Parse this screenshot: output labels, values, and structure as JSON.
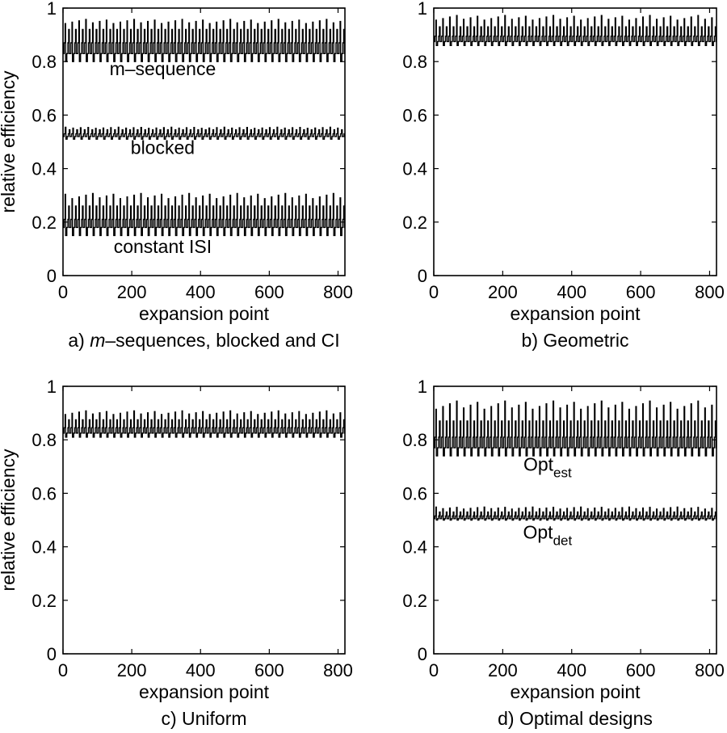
{
  "figure": {
    "background": "#ffffff",
    "line_color": "#000000"
  },
  "chart_data": [
    {
      "id": "a",
      "type": "line",
      "caption_prefix": "a) ",
      "caption_italic": "m",
      "caption_rest": "–sequences, blocked and CI",
      "xlabel": "expansion point",
      "ylabel": "relative efficiency",
      "xlim": [
        0,
        820
      ],
      "ylim": [
        0,
        1
      ],
      "xticks": [
        0,
        200,
        400,
        600,
        800
      ],
      "yticks": [
        0,
        0.2,
        0.4,
        0.6,
        0.8,
        1
      ],
      "grid": false,
      "series": [
        {
          "name": "m–sequence",
          "base": 0.8,
          "low": 0.83,
          "mid": 0.87,
          "high": 0.92,
          "peak": 0.96,
          "period": 20
        },
        {
          "name": "blocked",
          "base": 0.51,
          "low": 0.52,
          "mid": 0.53,
          "high": 0.545,
          "peak": 0.555,
          "period": 22
        },
        {
          "name": "constant ISI",
          "base": 0.15,
          "low": 0.18,
          "mid": 0.21,
          "high": 0.26,
          "peak": 0.31,
          "period": 20
        }
      ],
      "annotations": [
        {
          "text": "m–sequence",
          "x": 290,
          "y": 0.75
        },
        {
          "text": "blocked",
          "x": 290,
          "y": 0.455
        },
        {
          "text": "constant ISI",
          "x": 290,
          "y": 0.085
        }
      ]
    },
    {
      "id": "b",
      "type": "line",
      "caption": "b) Geometric",
      "xlabel": "expansion point",
      "ylabel": "",
      "xlim": [
        0,
        820
      ],
      "ylim": [
        0,
        1
      ],
      "xticks": [
        0,
        200,
        400,
        600,
        800
      ],
      "yticks": [
        0,
        0.2,
        0.4,
        0.6,
        0.8,
        1
      ],
      "grid": false,
      "series": [
        {
          "base": 0.86,
          "low": 0.875,
          "mid": 0.895,
          "high": 0.93,
          "peak": 0.975,
          "period": 20
        }
      ],
      "annotations": []
    },
    {
      "id": "c",
      "type": "line",
      "caption": "c) Uniform",
      "xlabel": "expansion point",
      "ylabel": "relative efficiency",
      "xlim": [
        0,
        820
      ],
      "ylim": [
        0,
        1
      ],
      "xticks": [
        0,
        200,
        400,
        600,
        800
      ],
      "yticks": [
        0,
        0.2,
        0.4,
        0.6,
        0.8,
        1
      ],
      "grid": false,
      "series": [
        {
          "base": 0.81,
          "low": 0.825,
          "mid": 0.845,
          "high": 0.875,
          "peak": 0.91,
          "period": 20
        }
      ],
      "annotations": []
    },
    {
      "id": "d",
      "type": "line",
      "caption": "d) Optimal designs",
      "xlabel": "expansion point",
      "ylabel": "",
      "xlim": [
        0,
        820
      ],
      "ylim": [
        0,
        1
      ],
      "xticks": [
        0,
        200,
        400,
        600,
        800
      ],
      "yticks": [
        0,
        0.2,
        0.4,
        0.6,
        0.8,
        1
      ],
      "grid": false,
      "series": [
        {
          "name": "Opt_est",
          "base": 0.74,
          "low": 0.77,
          "mid": 0.81,
          "high": 0.87,
          "peak": 0.95,
          "period": 20
        },
        {
          "name": "Opt_det",
          "base": 0.5,
          "low": 0.505,
          "mid": 0.515,
          "high": 0.53,
          "peak": 0.55,
          "period": 20
        }
      ],
      "annotations": [
        {
          "text": "Opt",
          "sub": "est",
          "x": 330,
          "y": 0.685
        },
        {
          "text": "Opt",
          "sub": "det",
          "x": 330,
          "y": 0.43
        }
      ]
    }
  ]
}
